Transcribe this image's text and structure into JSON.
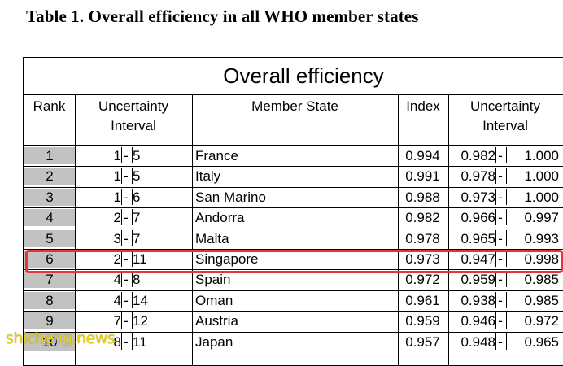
{
  "caption": "Table 1. Overall efficiency in all WHO member states",
  "banner": "Overall efficiency",
  "headers": {
    "rank": "Rank",
    "uncertainty_rank": [
      "Uncertainty",
      "Interval"
    ],
    "member_state": "Member State",
    "index": "Index",
    "uncertainty_index": [
      "Uncertainty",
      "Interval"
    ]
  },
  "rows": [
    {
      "rank": "1",
      "lo": "1",
      "hi": "5",
      "state": "France",
      "index": "0.994",
      "ilo": "0.982",
      "ihi": "1.000"
    },
    {
      "rank": "2",
      "lo": "1",
      "hi": "5",
      "state": "Italy",
      "index": "0.991",
      "ilo": "0.978",
      "ihi": "1.000"
    },
    {
      "rank": "3",
      "lo": "1",
      "hi": "6",
      "state": "San Marino",
      "index": "0.988",
      "ilo": "0.973",
      "ihi": "1.000"
    },
    {
      "rank": "4",
      "lo": "2",
      "hi": "7",
      "state": "Andorra",
      "index": "0.982",
      "ilo": "0.966",
      "ihi": "0.997"
    },
    {
      "rank": "5",
      "lo": "3",
      "hi": "7",
      "state": "Malta",
      "index": "0.978",
      "ilo": "0.965",
      "ihi": "0.993"
    },
    {
      "rank": "6",
      "lo": "2",
      "hi": "11",
      "state": "Singapore",
      "index": "0.973",
      "ilo": "0.947",
      "ihi": "0.998"
    },
    {
      "rank": "7",
      "lo": "4",
      "hi": "8",
      "state": "Spain",
      "index": "0.972",
      "ilo": "0.959",
      "ihi": "0.985"
    },
    {
      "rank": "8",
      "lo": "4",
      "hi": "14",
      "state": "Oman",
      "index": "0.961",
      "ilo": "0.938",
      "ihi": "0.985"
    },
    {
      "rank": "9",
      "lo": "7",
      "hi": "12",
      "state": "Austria",
      "index": "0.959",
      "ilo": "0.946",
      "ihi": "0.972"
    },
    {
      "rank": "10",
      "lo": "8",
      "hi": "11",
      "state": "Japan",
      "index": "0.957",
      "ilo": "0.948",
      "ihi": "0.965"
    }
  ],
  "dash": "-",
  "highlighted_state": "Singapore",
  "highlight_color": "#e3353a",
  "watermark": "shicheng.news"
}
